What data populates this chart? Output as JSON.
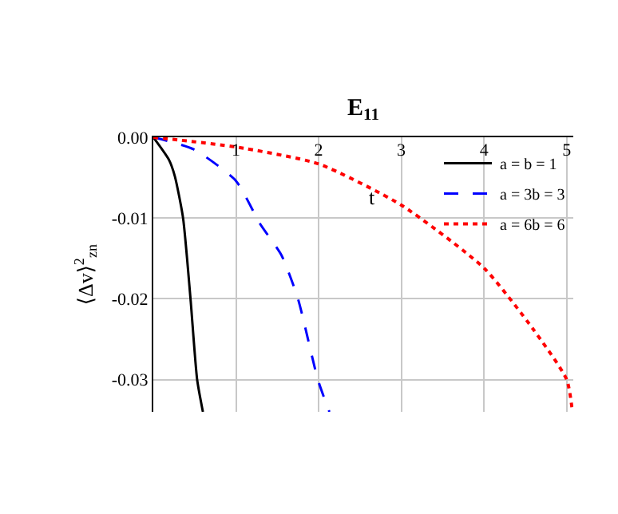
{
  "chart_data": {
    "type": "line",
    "title": "E$_{11}$",
    "xlabel": "t",
    "ylabel": "⟨Δv⟩$^{2}$$_{zn}$",
    "xlim": [
      0,
      5.08
    ],
    "ylim": [
      -0.034,
      0
    ],
    "xticks": [
      1,
      2,
      3,
      4,
      5
    ],
    "yticks": [
      {
        "value": 0,
        "label": "0.00"
      },
      {
        "value": -0.01,
        "label": "-0.01"
      },
      {
        "value": -0.02,
        "label": "-0.02"
      },
      {
        "value": -0.03,
        "label": "-0.03"
      }
    ],
    "grid": true,
    "legend": "top right",
    "series": [
      {
        "name": "a = b = 1",
        "color": "#000000",
        "line_style": "solid",
        "x": [
          0,
          0.19,
          0.26,
          0.36,
          0.45,
          0.53,
          0.6
        ],
        "values": [
          0,
          -0.0028,
          -0.0048,
          -0.01,
          -0.02,
          -0.03,
          -0.034
        ]
      },
      {
        "name": "a = 3b = 3",
        "color": "#0000ff",
        "line_style": "dashed",
        "x": [
          0,
          0.49,
          1,
          1.29,
          1.55,
          1.75,
          1.99,
          2.13
        ],
        "values": [
          0,
          -0.0015,
          -0.0054,
          -0.0107,
          -0.0146,
          -0.02,
          -0.03,
          -0.034
        ]
      },
      {
        "name": "a = 6b = 6",
        "color": "#ff0000",
        "line_style": "dotted",
        "x": [
          0,
          1,
          2,
          3,
          4,
          4.59,
          5,
          5.07
        ],
        "values": [
          0,
          -0.0012,
          -0.0033,
          -0.0084,
          -0.0162,
          -0.0237,
          -0.03,
          -0.034
        ]
      }
    ]
  }
}
